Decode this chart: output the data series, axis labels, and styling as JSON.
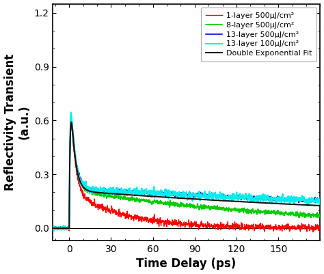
{
  "xlabel": "Time Delay (ps)",
  "ylabel": "Reflectivity Transient\n(a.u.)",
  "xlim": [
    -12,
    180
  ],
  "ylim": [
    -0.07,
    1.25
  ],
  "yticks": [
    0.0,
    0.3,
    0.6,
    0.9,
    1.2
  ],
  "xticks": [
    0,
    30,
    60,
    90,
    120,
    150
  ],
  "background_color": "#ffffff",
  "series": [
    {
      "label": "1-layer 500μJ/cm²",
      "color": "#ff0000",
      "A1": 0.78,
      "tau1": 3.0,
      "A2": 0.21,
      "tau2": 38,
      "noise": 0.009,
      "lw": 1.0,
      "zorder": 3
    },
    {
      "label": "8-layer 500μJ/cm²",
      "color": "#00cc00",
      "A1": 0.78,
      "tau1": 3.0,
      "A2": 0.215,
      "tau2": 160,
      "noise": 0.006,
      "lw": 1.2,
      "zorder": 4
    },
    {
      "label": "13-layer 500μJ/cm²",
      "color": "#0000ee",
      "A1": 0.78,
      "tau1": 3.0,
      "A2": 0.22,
      "tau2": 500,
      "noise": 0.006,
      "lw": 1.2,
      "zorder": 5
    },
    {
      "label": "13-layer 100μJ/cm²",
      "color": "#00eeee",
      "A1": 0.88,
      "tau1": 2.8,
      "A2": 0.22,
      "tau2": 500,
      "noise": 0.01,
      "lw": 1.5,
      "zorder": 6
    }
  ],
  "fit_label": "Double Exponential Fit",
  "fit_color": "#111111",
  "fit_lw": 1.5,
  "fit_A1": 0.82,
  "fit_tau1": 2.9,
  "fit_A2": 0.21,
  "fit_tau2": 350,
  "legend_fontsize": 8.0,
  "axis_label_fontsize": 12,
  "tick_fontsize": 10,
  "peak_time": 2.0,
  "rise_tau": 0.8
}
